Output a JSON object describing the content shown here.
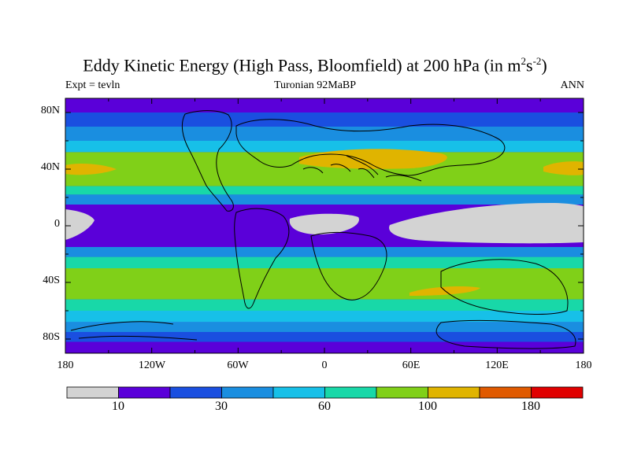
{
  "title": {
    "main": "Eddy Kinetic Energy (High Pass, Bloomfield) at 200 hPa (in m",
    "sup1": "2",
    "mid": "s",
    "sup2": "-2",
    "end": ")"
  },
  "subtitle": {
    "left": "Expt = tevln",
    "center": "Turonian  92MaBP",
    "right": "ANN"
  },
  "axes": {
    "lat_labels": [
      "80N",
      "40N",
      "0",
      "40S",
      "80S"
    ],
    "lon_labels": [
      "180",
      "120W",
      "60W",
      "0",
      "60E",
      "120E",
      "180"
    ]
  },
  "colorbar": {
    "colors": [
      "#d3d3d3",
      "#5a00d9",
      "#1a4fe0",
      "#1a8ee0",
      "#17c0e8",
      "#18d8a8",
      "#80d018",
      "#e0b400",
      "#e05a00",
      "#e00000"
    ],
    "labels": [
      "10",
      "30",
      "60",
      "100",
      "180"
    ]
  },
  "chart_data": {
    "type": "heatmap",
    "variable": "Eddy Kinetic Energy at 200 hPa",
    "units": "m2 s-2",
    "experiment": "tevln",
    "period": "Turonian 92MaBP",
    "season": "ANN",
    "x_range": [
      -180,
      180
    ],
    "y_range": [
      -90,
      90
    ],
    "band_levels": [
      0,
      10,
      20,
      30,
      45,
      60,
      80,
      100,
      130,
      180,
      240
    ],
    "description_fields": {
      "zonal_bands": [
        {
          "lat": [
            80,
            90
          ],
          "level": 1
        },
        {
          "lat": [
            70,
            80
          ],
          "level": 2
        },
        {
          "lat": [
            60,
            70
          ],
          "level": 3
        },
        {
          "lat": [
            52,
            60
          ],
          "level": 4
        },
        {
          "lat": [
            28,
            52
          ],
          "level": 6
        },
        {
          "lat": [
            22,
            28
          ],
          "level": 5
        },
        {
          "lat": [
            15,
            22
          ],
          "level": 3
        },
        {
          "lat": [
            -15,
            15
          ],
          "level": 1
        },
        {
          "lat": [
            -22,
            -15
          ],
          "level": 3
        },
        {
          "lat": [
            -30,
            -22
          ],
          "level": 5
        },
        {
          "lat": [
            -52,
            -30
          ],
          "level": 6
        },
        {
          "lat": [
            -60,
            -52
          ],
          "level": 5
        },
        {
          "lat": [
            -68,
            -60
          ],
          "level": 4
        },
        {
          "lat": [
            -75,
            -68
          ],
          "level": 3
        },
        {
          "lat": [
            -82,
            -75
          ],
          "level": 2
        },
        {
          "lat": [
            -90,
            -82
          ],
          "level": 1
        }
      ]
    }
  }
}
